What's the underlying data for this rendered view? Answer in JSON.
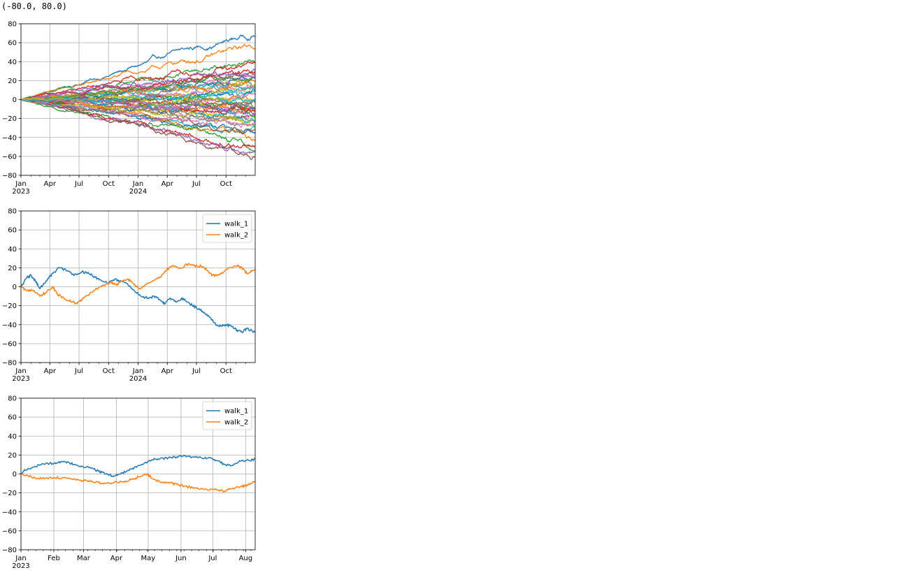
{
  "output_text": "(-80.0, 80.0)",
  "chart_data": [
    {
      "type": "line",
      "description": "many random walks",
      "x_start": "2023-01-01",
      "x_end": "2024-12-31",
      "ylim": [
        -80,
        80
      ],
      "yticks": [
        -80,
        -60,
        -40,
        -20,
        0,
        20,
        40,
        60,
        80
      ],
      "xticks": [
        {
          "date": "2023-01-01",
          "label": "Jan",
          "year": "2023"
        },
        {
          "date": "2023-04-01",
          "label": "Apr"
        },
        {
          "date": "2023-07-01",
          "label": "Jul"
        },
        {
          "date": "2023-10-01",
          "label": "Oct"
        },
        {
          "date": "2024-01-01",
          "label": "Jan",
          "year": "2024"
        },
        {
          "date": "2024-04-01",
          "label": "Apr"
        },
        {
          "date": "2024-07-01",
          "label": "Jul"
        },
        {
          "date": "2024-10-01",
          "label": "Oct"
        }
      ],
      "grid": true,
      "legend": false,
      "n_series": 50,
      "series_envelope_endpoints": [
        70,
        56,
        42,
        38,
        32,
        28,
        22,
        18,
        14,
        10,
        6,
        2,
        -4,
        -10,
        -14,
        -18,
        -22,
        -26,
        -30,
        -34,
        -38,
        -42,
        -46,
        -50,
        -56,
        -62
      ],
      "colors": [
        "#1f77b4",
        "#ff7f0e",
        "#2ca02c",
        "#d62728",
        "#9467bd",
        "#8c564b",
        "#e377c2",
        "#7f7f7f",
        "#bcbd22",
        "#17becf"
      ]
    },
    {
      "type": "line",
      "x_start": "2023-01-01",
      "x_end": "2024-12-31",
      "ylim": [
        -80,
        80
      ],
      "yticks": [
        -80,
        -60,
        -40,
        -20,
        0,
        20,
        40,
        60,
        80
      ],
      "xticks": [
        {
          "date": "2023-01-01",
          "label": "Jan",
          "year": "2023"
        },
        {
          "date": "2023-04-01",
          "label": "Apr"
        },
        {
          "date": "2023-07-01",
          "label": "Jul"
        },
        {
          "date": "2023-10-01",
          "label": "Oct"
        },
        {
          "date": "2024-01-01",
          "label": "Jan",
          "year": "2024"
        },
        {
          "date": "2024-04-01",
          "label": "Apr"
        },
        {
          "date": "2024-07-01",
          "label": "Jul"
        },
        {
          "date": "2024-10-01",
          "label": "Oct"
        }
      ],
      "grid": true,
      "legend": "top-right",
      "series": [
        {
          "name": "walk_1",
          "color": "#1f77b4",
          "points": [
            [
              "2023-01-01",
              0
            ],
            [
              "2023-01-20",
              10
            ],
            [
              "2023-02-01",
              12
            ],
            [
              "2023-02-15",
              6
            ],
            [
              "2023-03-01",
              -2
            ],
            [
              "2023-03-20",
              6
            ],
            [
              "2023-04-10",
              14
            ],
            [
              "2023-05-01",
              20
            ],
            [
              "2023-05-20",
              18
            ],
            [
              "2023-06-15",
              12
            ],
            [
              "2023-07-10",
              16
            ],
            [
              "2023-08-01",
              14
            ],
            [
              "2023-08-20",
              10
            ],
            [
              "2023-09-10",
              6
            ],
            [
              "2023-10-01",
              4
            ],
            [
              "2023-10-20",
              8
            ],
            [
              "2023-11-10",
              6
            ],
            [
              "2023-12-01",
              2
            ],
            [
              "2023-12-20",
              -4
            ],
            [
              "2024-01-10",
              -10
            ],
            [
              "2024-02-01",
              -12
            ],
            [
              "2024-02-20",
              -10
            ],
            [
              "2024-03-10",
              -14
            ],
            [
              "2024-03-25",
              -18
            ],
            [
              "2024-04-10",
              -12
            ],
            [
              "2024-05-01",
              -16
            ],
            [
              "2024-05-20",
              -12
            ],
            [
              "2024-06-10",
              -18
            ],
            [
              "2024-07-01",
              -22
            ],
            [
              "2024-07-20",
              -26
            ],
            [
              "2024-08-10",
              -32
            ],
            [
              "2024-08-25",
              -38
            ],
            [
              "2024-09-10",
              -42
            ],
            [
              "2024-10-01",
              -40
            ],
            [
              "2024-10-20",
              -42
            ],
            [
              "2024-11-05",
              -46
            ],
            [
              "2024-11-20",
              -48
            ],
            [
              "2024-12-05",
              -44
            ],
            [
              "2024-12-31",
              -48
            ]
          ]
        },
        {
          "name": "walk_2",
          "color": "#ff7f0e",
          "points": [
            [
              "2023-01-01",
              0
            ],
            [
              "2023-01-20",
              -4
            ],
            [
              "2023-02-10",
              -4
            ],
            [
              "2023-03-01",
              -10
            ],
            [
              "2023-03-20",
              -6
            ],
            [
              "2023-04-10",
              0
            ],
            [
              "2023-04-25",
              -8
            ],
            [
              "2023-05-15",
              -12
            ],
            [
              "2023-06-10",
              -16
            ],
            [
              "2023-06-25",
              -18
            ],
            [
              "2023-07-15",
              -12
            ],
            [
              "2023-08-10",
              -6
            ],
            [
              "2023-08-25",
              -2
            ],
            [
              "2023-09-15",
              2
            ],
            [
              "2023-10-10",
              4
            ],
            [
              "2023-10-25",
              2
            ],
            [
              "2023-11-10",
              6
            ],
            [
              "2023-12-01",
              8
            ],
            [
              "2023-12-20",
              2
            ],
            [
              "2024-01-05",
              -2
            ],
            [
              "2024-01-25",
              2
            ],
            [
              "2024-02-15",
              6
            ],
            [
              "2024-03-10",
              10
            ],
            [
              "2024-03-30",
              18
            ],
            [
              "2024-04-20",
              22
            ],
            [
              "2024-05-15",
              20
            ],
            [
              "2024-06-05",
              24
            ],
            [
              "2024-06-25",
              22
            ],
            [
              "2024-07-15",
              22
            ],
            [
              "2024-08-01",
              18
            ],
            [
              "2024-08-20",
              12
            ],
            [
              "2024-09-05",
              12
            ],
            [
              "2024-09-25",
              16
            ],
            [
              "2024-10-15",
              20
            ],
            [
              "2024-11-05",
              22
            ],
            [
              "2024-11-20",
              20
            ],
            [
              "2024-12-05",
              14
            ],
            [
              "2024-12-31",
              18
            ]
          ]
        }
      ]
    },
    {
      "type": "line",
      "x_start": "2023-01-01",
      "x_end": "2023-08-10",
      "ylim": [
        -80,
        80
      ],
      "yticks": [
        -80,
        -60,
        -40,
        -20,
        0,
        20,
        40,
        60,
        80
      ],
      "xticks": [
        {
          "date": "2023-01-01",
          "label": "Jan",
          "year": "2023"
        },
        {
          "date": "2023-02-01",
          "label": "Feb"
        },
        {
          "date": "2023-03-01",
          "label": "Mar"
        },
        {
          "date": "2023-04-01",
          "label": "Apr"
        },
        {
          "date": "2023-05-01",
          "label": "May"
        },
        {
          "date": "2023-06-01",
          "label": "Jun"
        },
        {
          "date": "2023-07-01",
          "label": "Jul"
        },
        {
          "date": "2023-08-01",
          "label": "Aug"
        }
      ],
      "grid": true,
      "legend": "top-right",
      "series": [
        {
          "name": "walk_1",
          "color": "#1f77b4",
          "points": [
            [
              "2023-01-01",
              0
            ],
            [
              "2023-01-05",
              4
            ],
            [
              "2023-01-12",
              7
            ],
            [
              "2023-01-20",
              10
            ],
            [
              "2023-01-28",
              11
            ],
            [
              "2023-02-05",
              12
            ],
            [
              "2023-02-12",
              13
            ],
            [
              "2023-02-20",
              10
            ],
            [
              "2023-02-28",
              8
            ],
            [
              "2023-03-08",
              6
            ],
            [
              "2023-03-15",
              3
            ],
            [
              "2023-03-22",
              0
            ],
            [
              "2023-03-28",
              -2
            ],
            [
              "2023-04-05",
              0
            ],
            [
              "2023-04-12",
              4
            ],
            [
              "2023-04-20",
              7
            ],
            [
              "2023-04-28",
              12
            ],
            [
              "2023-05-05",
              15
            ],
            [
              "2023-05-12",
              16
            ],
            [
              "2023-05-20",
              17
            ],
            [
              "2023-05-28",
              18
            ],
            [
              "2023-06-05",
              19
            ],
            [
              "2023-06-12",
              18
            ],
            [
              "2023-06-20",
              17
            ],
            [
              "2023-06-28",
              17
            ],
            [
              "2023-07-05",
              14
            ],
            [
              "2023-07-12",
              10
            ],
            [
              "2023-07-20",
              9
            ],
            [
              "2023-07-28",
              14
            ],
            [
              "2023-08-05",
              14
            ],
            [
              "2023-08-10",
              16
            ]
          ]
        },
        {
          "name": "walk_2",
          "color": "#ff7f0e",
          "points": [
            [
              "2023-01-01",
              0
            ],
            [
              "2023-01-08",
              -2
            ],
            [
              "2023-01-15",
              -5
            ],
            [
              "2023-01-22",
              -4
            ],
            [
              "2023-02-01",
              -4
            ],
            [
              "2023-02-10",
              -4
            ],
            [
              "2023-02-20",
              -5
            ],
            [
              "2023-02-28",
              -7
            ],
            [
              "2023-03-08",
              -8
            ],
            [
              "2023-03-15",
              -9
            ],
            [
              "2023-03-22",
              -10
            ],
            [
              "2023-03-30",
              -9
            ],
            [
              "2023-04-08",
              -8
            ],
            [
              "2023-04-15",
              -6
            ],
            [
              "2023-04-22",
              -3
            ],
            [
              "2023-04-30",
              0
            ],
            [
              "2023-05-05",
              -5
            ],
            [
              "2023-05-12",
              -8
            ],
            [
              "2023-05-20",
              -9
            ],
            [
              "2023-05-28",
              -11
            ],
            [
              "2023-06-05",
              -13
            ],
            [
              "2023-06-15",
              -15
            ],
            [
              "2023-06-25",
              -16
            ],
            [
              "2023-07-05",
              -17
            ],
            [
              "2023-07-12",
              -18
            ],
            [
              "2023-07-20",
              -15
            ],
            [
              "2023-07-28",
              -13
            ],
            [
              "2023-08-03",
              -12
            ],
            [
              "2023-08-10",
              -8
            ]
          ]
        }
      ]
    }
  ]
}
